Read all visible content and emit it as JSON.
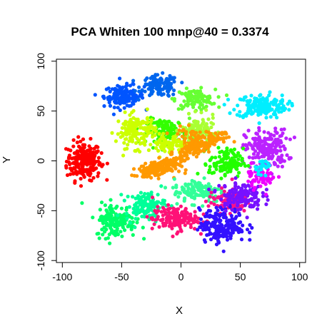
{
  "chart_data": {
    "type": "scatter",
    "title": "PCA Whiten 100 mnp@40 = 0.3374",
    "xlabel": "X",
    "ylabel": "Y",
    "xlim": [
      -105,
      105
    ],
    "ylim": [
      -102,
      102
    ],
    "x_ticks": [
      -100,
      -50,
      0,
      50,
      100
    ],
    "y_ticks": [
      -100,
      -50,
      0,
      50,
      100
    ],
    "grid": false,
    "legend": "none",
    "clusters": [
      {
        "color": "#ff0000",
        "center": [
          -82,
          0
        ],
        "spread": [
          12,
          16
        ],
        "count": 230
      },
      {
        "color": "#0055ff",
        "center": [
          -48,
          65
        ],
        "spread": [
          14,
          9
        ],
        "count": 140
      },
      {
        "color": "#0066ee",
        "center": [
          -18,
          75
        ],
        "spread": [
          13,
          9
        ],
        "count": 120
      },
      {
        "color": "#66ff33",
        "center": [
          12,
          62
        ],
        "spread": [
          14,
          8
        ],
        "count": 110
      },
      {
        "color": "#00eeff",
        "center": [
          68,
          55
        ],
        "spread": [
          18,
          10
        ],
        "count": 180
      },
      {
        "color": "#bb22ff",
        "center": [
          72,
          12
        ],
        "spread": [
          15,
          16
        ],
        "count": 200
      },
      {
        "color": "#33ff00",
        "center": [
          -12,
          30
        ],
        "spread": [
          14,
          10
        ],
        "count": 120
      },
      {
        "color": "#ccff00",
        "center": [
          -38,
          30
        ],
        "spread": [
          14,
          14
        ],
        "count": 150
      },
      {
        "color": "#aaff33",
        "center": [
          15,
          30
        ],
        "spread": [
          12,
          12
        ],
        "count": 110
      },
      {
        "color": "#ff9900",
        "center": [
          10,
          20
        ],
        "spread": [
          12,
          10
        ],
        "count": 90
      },
      {
        "color": "#ff9900",
        "center": [
          -20,
          -8
        ],
        "spread": [
          14,
          7
        ],
        "count": 80
      },
      {
        "color": "#22ff00",
        "center": [
          38,
          -2
        ],
        "spread": [
          12,
          12
        ],
        "count": 120
      },
      {
        "color": "#33ff99",
        "center": [
          15,
          -30
        ],
        "spread": [
          18,
          10
        ],
        "count": 120
      },
      {
        "color": "#00ff66",
        "center": [
          -55,
          -60
        ],
        "spread": [
          14,
          14
        ],
        "count": 150
      },
      {
        "color": "#00ff99",
        "center": [
          -30,
          -45
        ],
        "spread": [
          14,
          12
        ],
        "count": 120
      },
      {
        "color": "#ff1177",
        "center": [
          -5,
          -58
        ],
        "spread": [
          16,
          10
        ],
        "count": 160
      },
      {
        "color": "#ff1188",
        "center": [
          40,
          -40
        ],
        "spread": [
          14,
          10
        ],
        "count": 100
      },
      {
        "color": "#3311ff",
        "center": [
          35,
          -65
        ],
        "spread": [
          16,
          14
        ],
        "count": 200
      },
      {
        "color": "#7711ff",
        "center": [
          50,
          -35
        ],
        "spread": [
          15,
          12
        ],
        "count": 140
      },
      {
        "color": "#ee00ff",
        "center": [
          68,
          -15
        ],
        "spread": [
          10,
          10
        ],
        "count": 60
      },
      {
        "color": "#ccff00",
        "center": [
          -10,
          15
        ],
        "spread": [
          10,
          8
        ],
        "count": 70
      },
      {
        "color": "#00eeff",
        "center": [
          70,
          -5
        ],
        "spread": [
          6,
          6
        ],
        "count": 25
      }
    ],
    "diagonal_band": {
      "color": "#ff9900",
      "from": [
        -35,
        -15
      ],
      "to": [
        40,
        28
      ],
      "width": 8,
      "count": 180
    }
  },
  "colors": {
    "axis": "#000000",
    "background": "#ffffff"
  }
}
